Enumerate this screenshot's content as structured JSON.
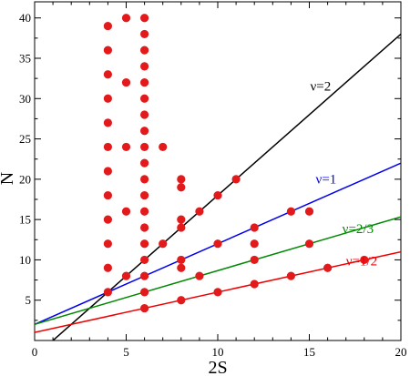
{
  "chart_data": {
    "type": "scatter",
    "title": "",
    "xlabel": "2S",
    "ylabel": "N",
    "xlim": [
      0,
      20
    ],
    "ylim": [
      0,
      42
    ],
    "x_ticks": [
      0,
      5,
      10,
      15,
      20
    ],
    "y_ticks": [
      5,
      10,
      15,
      20,
      25,
      30,
      35,
      40
    ],
    "grid": false,
    "legend": "none",
    "points_color": "#e31a1c",
    "points": [
      [
        4,
        6
      ],
      [
        4,
        9
      ],
      [
        4,
        12
      ],
      [
        4,
        15
      ],
      [
        4,
        18
      ],
      [
        4,
        21
      ],
      [
        4,
        24
      ],
      [
        4,
        27
      ],
      [
        4,
        30
      ],
      [
        4,
        33
      ],
      [
        4,
        36
      ],
      [
        4,
        39
      ],
      [
        5,
        8
      ],
      [
        5,
        16
      ],
      [
        5,
        24
      ],
      [
        5,
        32
      ],
      [
        5,
        40
      ],
      [
        6,
        4
      ],
      [
        6,
        6
      ],
      [
        6,
        8
      ],
      [
        6,
        10
      ],
      [
        6,
        12
      ],
      [
        6,
        14
      ],
      [
        6,
        16
      ],
      [
        6,
        18
      ],
      [
        6,
        20
      ],
      [
        6,
        22
      ],
      [
        6,
        24
      ],
      [
        6,
        26
      ],
      [
        6,
        28
      ],
      [
        6,
        30
      ],
      [
        6,
        32
      ],
      [
        6,
        34
      ],
      [
        6,
        36
      ],
      [
        6,
        38
      ],
      [
        6,
        40
      ],
      [
        7,
        12
      ],
      [
        7,
        24
      ],
      [
        8,
        5
      ],
      [
        8,
        9
      ],
      [
        8,
        10
      ],
      [
        8,
        14
      ],
      [
        8,
        15
      ],
      [
        8,
        19
      ],
      [
        8,
        20
      ],
      [
        9,
        8
      ],
      [
        9,
        16
      ],
      [
        10,
        6
      ],
      [
        10,
        12
      ],
      [
        10,
        18
      ],
      [
        11,
        20
      ],
      [
        12,
        7
      ],
      [
        12,
        10
      ],
      [
        12,
        12
      ],
      [
        12,
        14
      ],
      [
        14,
        8
      ],
      [
        14,
        16
      ],
      [
        15,
        12
      ],
      [
        15,
        16
      ],
      [
        16,
        9
      ],
      [
        18,
        10
      ]
    ],
    "lines": [
      {
        "label": "ν=2",
        "color": "#000000",
        "slope": 2,
        "intercept": -2,
        "label_x": 15.05,
        "label_y": 31.0
      },
      {
        "label": "ν=1",
        "color": "#0000ee",
        "slope": 1,
        "intercept": 2,
        "label_x": 15.35,
        "label_y": 19.5
      },
      {
        "label": "ν=2/3",
        "color": "#008800",
        "slope": 0.6667,
        "intercept": 2,
        "label_x": 16.8,
        "label_y": 13.3
      },
      {
        "label": "ν=1/2",
        "color": "#ee0000",
        "slope": 0.5,
        "intercept": 1,
        "label_x": 17.0,
        "label_y": 9.3
      }
    ]
  }
}
